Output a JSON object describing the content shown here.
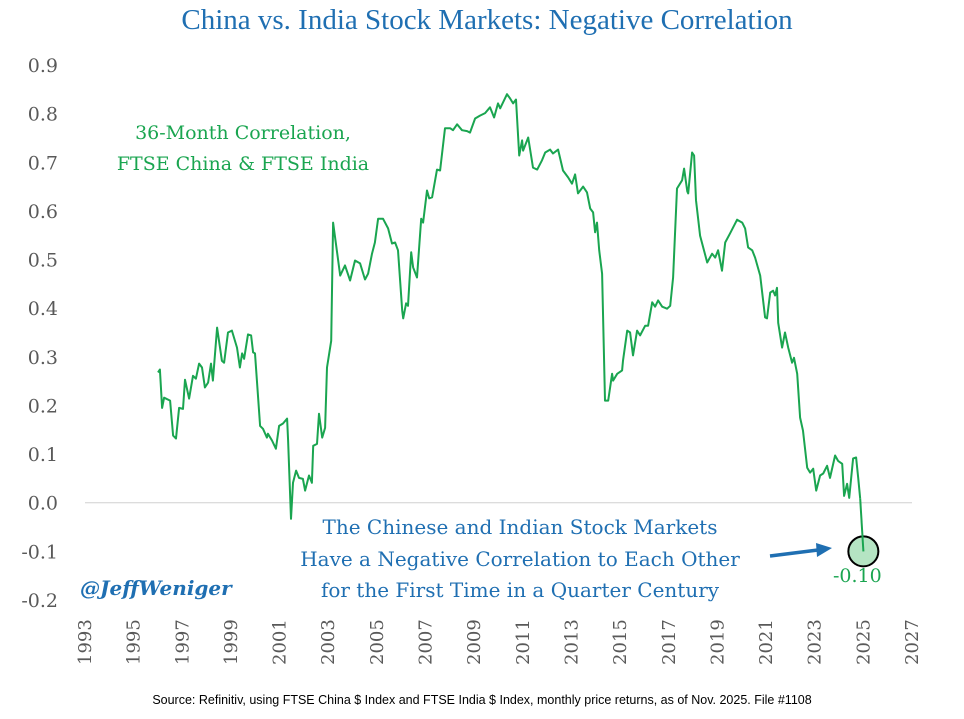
{
  "colors": {
    "series": "#1aa550",
    "title": "#1f6fb2",
    "annotation": "#1f6fb2",
    "highlight_fill": "#a8dfb9",
    "grid": "#d0d0d0"
  },
  "chart_data": {
    "type": "line",
    "title": "China vs. India Stock Markets: Negative Correlation",
    "series_label": [
      "36-Month Correlation,",
      "FTSE China & FTSE India"
    ],
    "xlim": [
      1993,
      2027
    ],
    "ylim": [
      -0.2,
      0.9
    ],
    "x_ticks": [
      "1993",
      "1995",
      "1997",
      "1999",
      "2001",
      "2003",
      "2005",
      "2007",
      "2009",
      "2011",
      "2013",
      "2015",
      "2017",
      "2019",
      "2021",
      "2023",
      "2025",
      "2027"
    ],
    "y_ticks": [
      "0.9",
      "0.8",
      "0.7",
      "0.6",
      "0.5",
      "0.4",
      "0.3",
      "0.2",
      "0.1",
      "0.0",
      "-0.1",
      "-0.2"
    ],
    "grid": "zero line only",
    "series": [
      {
        "x": [
          1996.0,
          1996.08,
          1996.17,
          1996.25,
          1996.5,
          1996.62,
          1996.74,
          1996.87,
          1997.03,
          1997.11,
          1997.28,
          1997.44,
          1997.56,
          1997.69,
          1997.81,
          1997.93,
          1998.06,
          1998.18,
          1998.26,
          1998.43,
          1998.63,
          1998.72,
          1998.88,
          1999.04,
          1999.25,
          1999.37,
          1999.46,
          1999.54,
          1999.7,
          1999.83,
          1999.91,
          1999.99,
          2000.2,
          2000.32,
          2000.48,
          2000.52,
          2000.69,
          2000.85,
          2000.98,
          2001.14,
          2001.31,
          2001.35,
          2001.47,
          2001.55,
          2001.68,
          2001.8,
          2001.96,
          2002.05,
          2002.21,
          2002.33,
          2002.38,
          2002.54,
          2002.62,
          2002.75,
          2002.87,
          2002.95,
          2003.12,
          2003.2,
          2003.49,
          2003.69,
          2003.9,
          2004.1,
          2004.31,
          2004.51,
          2004.64,
          2004.8,
          2004.92,
          2005.05,
          2005.25,
          2005.46,
          2005.62,
          2005.75,
          2005.87,
          2006.04,
          2006.08,
          2006.2,
          2006.28,
          2006.41,
          2006.49,
          2006.65,
          2006.82,
          2006.9,
          2007.06,
          2007.15,
          2007.27,
          2007.47,
          2007.6,
          2007.8,
          2008.01,
          2008.13,
          2008.3,
          2008.5,
          2008.71,
          2008.83,
          2009.04,
          2009.24,
          2009.45,
          2009.65,
          2009.82,
          2009.98,
          2010.07,
          2010.35,
          2010.48,
          2010.6,
          2010.72,
          2010.85,
          2010.97,
          2011.01,
          2011.22,
          2011.42,
          2011.59,
          2011.79,
          2011.92,
          2012.12,
          2012.24,
          2012.45,
          2012.65,
          2012.86,
          2013.02,
          2013.15,
          2013.27,
          2013.48,
          2013.64,
          2013.77,
          2013.89,
          2013.97,
          2014.05,
          2014.14,
          2014.26,
          2014.38,
          2014.51,
          2014.67,
          2014.71,
          2014.88,
          2015.08,
          2015.12,
          2015.29,
          2015.41,
          2015.53,
          2015.7,
          2015.82,
          2016.03,
          2016.15,
          2016.32,
          2016.44,
          2016.56,
          2016.73,
          2016.93,
          2017.06,
          2017.18,
          2017.34,
          2017.55,
          2017.63,
          2017.76,
          2017.8,
          2017.96,
          2018.04,
          2018.12,
          2018.29,
          2018.58,
          2018.78,
          2018.91,
          2019.03,
          2019.19,
          2019.32,
          2019.52,
          2019.81,
          2020.02,
          2020.14,
          2020.26,
          2020.43,
          2020.55,
          2020.76,
          2020.96,
          2021.04,
          2021.17,
          2021.29,
          2021.37,
          2021.45,
          2021.5,
          2021.66,
          2021.78,
          2021.91,
          2022.07,
          2022.15,
          2022.28,
          2022.4,
          2022.52,
          2022.69,
          2022.81,
          2022.94,
          2023.06,
          2023.22,
          2023.35,
          2023.51,
          2023.63,
          2023.84,
          2023.96,
          2024.13,
          2024.21,
          2024.33,
          2024.42,
          2024.58,
          2024.7,
          2024.79,
          2024.87,
          2025.0
        ],
        "y": [
          0.268,
          0.274,
          0.195,
          0.216,
          0.21,
          0.138,
          0.132,
          0.195,
          0.193,
          0.253,
          0.214,
          0.261,
          0.255,
          0.286,
          0.278,
          0.237,
          0.247,
          0.286,
          0.251,
          0.36,
          0.292,
          0.288,
          0.35,
          0.354,
          0.319,
          0.278,
          0.307,
          0.296,
          0.346,
          0.344,
          0.309,
          0.307,
          0.158,
          0.152,
          0.134,
          0.142,
          0.128,
          0.111,
          0.158,
          0.163,
          0.173,
          0.128,
          -0.033,
          0.041,
          0.066,
          0.051,
          0.049,
          0.025,
          0.056,
          0.041,
          0.117,
          0.121,
          0.183,
          0.134,
          0.154,
          0.278,
          0.333,
          0.576,
          0.467,
          0.488,
          0.457,
          0.498,
          0.492,
          0.459,
          0.471,
          0.512,
          0.535,
          0.584,
          0.584,
          0.564,
          0.533,
          0.535,
          0.519,
          0.395,
          0.379,
          0.41,
          0.405,
          0.515,
          0.484,
          0.463,
          0.584,
          0.576,
          0.642,
          0.626,
          0.628,
          0.685,
          0.683,
          0.77,
          0.77,
          0.766,
          0.778,
          0.766,
          0.764,
          0.761,
          0.79,
          0.796,
          0.801,
          0.813,
          0.792,
          0.821,
          0.811,
          0.84,
          0.831,
          0.821,
          0.829,
          0.714,
          0.745,
          0.724,
          0.751,
          0.689,
          0.685,
          0.704,
          0.72,
          0.726,
          0.718,
          0.726,
          0.683,
          0.669,
          0.656,
          0.675,
          0.636,
          0.65,
          0.638,
          0.605,
          0.597,
          0.556,
          0.576,
          0.519,
          0.471,
          0.21,
          0.21,
          0.265,
          0.251,
          0.265,
          0.272,
          0.292,
          0.354,
          0.35,
          0.303,
          0.354,
          0.344,
          0.364,
          0.364,
          0.412,
          0.403,
          0.416,
          0.403,
          0.399,
          0.405,
          0.463,
          0.646,
          0.663,
          0.687,
          0.64,
          0.636,
          0.72,
          0.714,
          0.622,
          0.549,
          0.494,
          0.512,
          0.504,
          0.519,
          0.477,
          0.535,
          0.554,
          0.582,
          0.576,
          0.564,
          0.525,
          0.519,
          0.504,
          0.467,
          0.381,
          0.379,
          0.432,
          0.436,
          0.426,
          0.442,
          0.37,
          0.319,
          0.35,
          0.319,
          0.288,
          0.298,
          0.265,
          0.175,
          0.148,
          0.072,
          0.062,
          0.07,
          0.025,
          0.056,
          0.06,
          0.076,
          0.051,
          0.097,
          0.086,
          0.08,
          0.014,
          0.039,
          0.01,
          0.091,
          0.093,
          0.051,
          0.008,
          -0.1
        ]
      }
    ],
    "end_value_label": "-0.10",
    "annotation": [
      "The Chinese and Indian Stock Markets",
      "Have a Negative Correlation to Each Other",
      "for the First Time in a Quarter Century"
    ],
    "handle": "@JeffWeniger",
    "source": "Source: Refinitiv, using FTSE China $ Index and FTSE India $ Index, monthly price returns, as of Nov. 2025. File #1108"
  }
}
